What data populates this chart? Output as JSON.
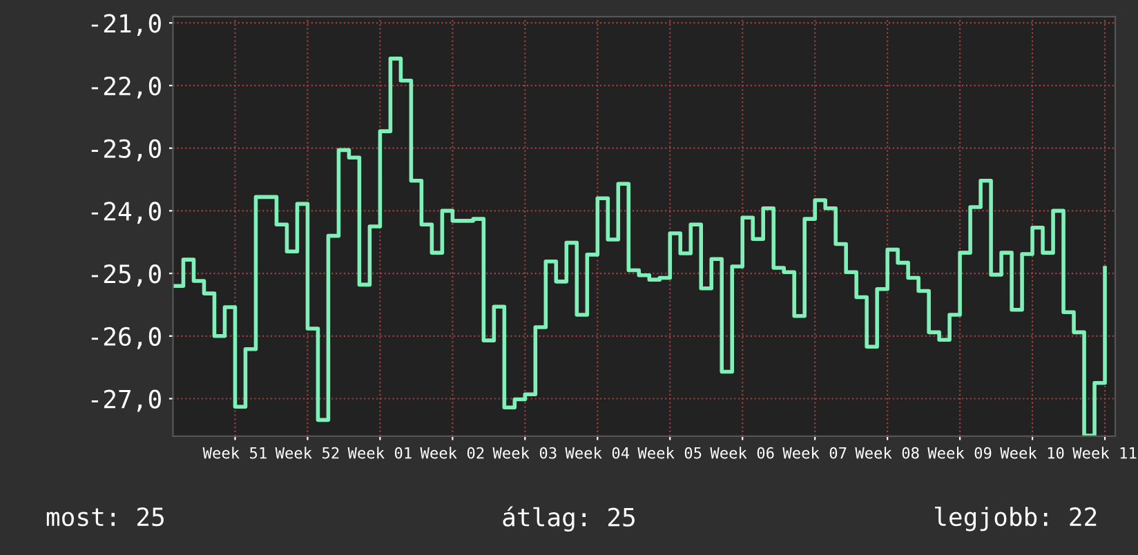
{
  "chart_data": {
    "type": "step",
    "color": "#80f0b8",
    "categories": [
      null,
      null,
      null,
      null,
      null,
      null,
      "Week 51",
      null,
      null,
      null,
      null,
      null,
      null,
      "Week 52",
      null,
      null,
      null,
      null,
      null,
      null,
      "Week 01",
      null,
      null,
      null,
      null,
      null,
      null,
      "Week 02",
      null,
      null,
      null,
      null,
      null,
      null,
      "Week 03",
      null,
      null,
      null,
      null,
      null,
      null,
      "Week 04",
      null,
      null,
      null,
      null,
      null,
      null,
      "Week 05",
      null,
      null,
      null,
      null,
      null,
      null,
      "Week 06",
      null,
      null,
      null,
      null,
      null,
      null,
      "Week 07",
      null,
      null,
      null,
      null,
      null,
      null,
      "Week 08",
      null,
      null,
      null,
      null,
      null,
      null,
      "Week 09",
      null,
      null,
      null,
      null,
      null,
      null,
      "Week 10",
      null,
      null,
      null,
      null,
      null,
      null,
      "Week 11"
    ],
    "values": [
      -25.2,
      -24.78,
      -25.12,
      -25.32,
      -26.0,
      -25.54,
      -27.13,
      -26.21,
      -23.78,
      -23.78,
      -24.22,
      -24.65,
      -23.89,
      -25.88,
      -27.34,
      -24.4,
      -23.03,
      -23.15,
      -25.18,
      -24.25,
      -22.73,
      -21.57,
      -21.92,
      -23.52,
      -24.22,
      -24.67,
      -24.0,
      -24.16,
      -24.16,
      -24.13,
      -26.07,
      -25.53,
      -27.14,
      -27.01,
      -26.93,
      -25.86,
      -24.81,
      -25.13,
      -24.51,
      -25.66,
      -24.7,
      -23.8,
      -24.46,
      -23.57,
      -24.95,
      -25.03,
      -25.1,
      -25.07,
      -24.36,
      -24.68,
      -24.22,
      -25.24,
      -24.77,
      -26.57,
      -24.89,
      -24.11,
      -24.45,
      -23.96,
      -24.91,
      -24.98,
      -25.68,
      -24.13,
      -23.83,
      -23.96,
      -24.53,
      -24.98,
      -25.38,
      -26.17,
      -25.25,
      -24.62,
      -24.83,
      -25.07,
      -25.28,
      -25.94,
      -26.06,
      -25.66,
      -24.67,
      -23.94,
      -23.52,
      -25.02,
      -24.67,
      -25.58,
      -24.69,
      -24.27,
      -24.67,
      -24.0,
      -25.62,
      -25.94,
      -27.59,
      -26.75,
      -24.91
    ],
    "ylim": [
      -27.6,
      -20.9
    ],
    "yticks": [
      {
        "value": -21,
        "label": "-21,0"
      },
      {
        "value": -22,
        "label": "-22,0"
      },
      {
        "value": -23,
        "label": "-23,0"
      },
      {
        "value": -24,
        "label": "-24,0"
      },
      {
        "value": -25,
        "label": "-25,0"
      },
      {
        "value": -26,
        "label": "-26,0"
      },
      {
        "value": -27,
        "label": "-27,0"
      }
    ],
    "grid": true,
    "annotations": [
      "most: 25",
      "átlag: 25",
      "legjobb: 22"
    ]
  }
}
